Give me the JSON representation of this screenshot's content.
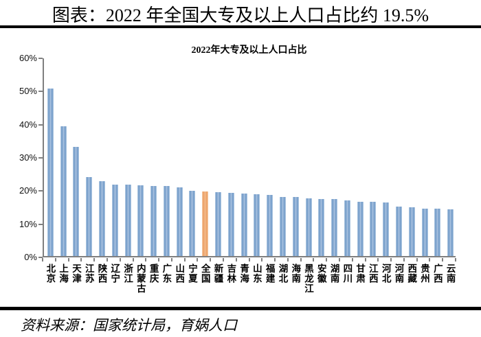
{
  "header": {
    "title": "图表：2022 年全国大专及以上人口占比约 19.5%"
  },
  "footer": {
    "source": "资料来源：国家统计局，育娲人口"
  },
  "chart_data": {
    "type": "bar",
    "title": "2022年大专及以上人口占比",
    "categories": [
      "北京",
      "上海",
      "天津",
      "江苏",
      "陕西",
      "辽宁",
      "浙江",
      "内蒙古",
      "重庆",
      "广东",
      "山西",
      "宁夏",
      "全国",
      "新疆",
      "吉林",
      "青海",
      "山东",
      "福建",
      "湖北",
      "海南",
      "黑龙江",
      "安徽",
      "湖南",
      "四川",
      "甘肃",
      "江西",
      "河北",
      "河南",
      "西藏",
      "贵州",
      "广西",
      "云南"
    ],
    "values": [
      50.5,
      39.1,
      32.9,
      23.8,
      22.6,
      21.6,
      21.5,
      21.4,
      21.2,
      21.1,
      20.6,
      19.7,
      19.5,
      19.3,
      19.1,
      18.8,
      18.6,
      18.4,
      17.9,
      17.8,
      17.3,
      17.2,
      17.1,
      16.8,
      16.4,
      16.3,
      16.1,
      15.0,
      14.8,
      14.3,
      14.2,
      14.1
    ],
    "highlight_category": "全国",
    "highlight_index": 12,
    "ylabel": "",
    "xlabel": "",
    "ylim": [
      0,
      60
    ],
    "ytick_labels": [
      "60%",
      "50%",
      "40%",
      "30%",
      "20%",
      "10%",
      "0%"
    ],
    "grid": false,
    "legend": "none",
    "bar_color": "#6e98c6",
    "bar_color_light": "#b9cfe6",
    "highlight_color": "#ec9d61",
    "highlight_color_light": "#f6d0ac",
    "axis_color": "#7f7f7f"
  }
}
